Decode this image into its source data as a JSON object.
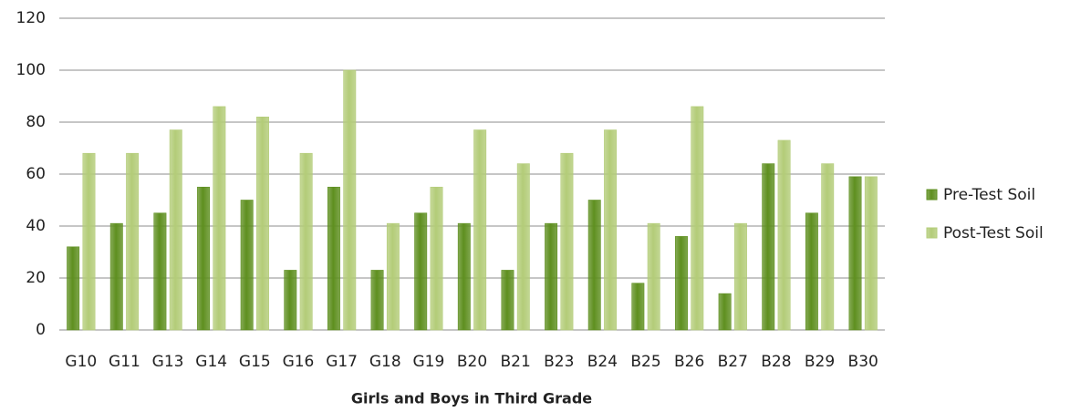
{
  "chart_data": {
    "type": "bar",
    "x_label": "Girls and Boys in Third Grade",
    "categories": [
      "G10",
      "G11",
      "G13",
      "G14",
      "G15",
      "G16",
      "G17",
      "G18",
      "G19",
      "B20",
      "B21",
      "B23",
      "B24",
      "B25",
      "B26",
      "B27",
      "B28",
      "B29",
      "B30"
    ],
    "series": [
      {
        "name": "Pre-Test Soil",
        "color": "#5e8f1f",
        "values": [
          32,
          41,
          45,
          55,
          50,
          23,
          55,
          23,
          45,
          41,
          23,
          41,
          50,
          18,
          36,
          14,
          64,
          45,
          59
        ]
      },
      {
        "name": "Post-Test Soil",
        "color": "#b3cc78",
        "values": [
          68,
          68,
          77,
          86,
          82,
          68,
          100,
          41,
          55,
          77,
          64,
          68,
          77,
          41,
          86,
          41,
          73,
          64,
          59
        ]
      }
    ],
    "ylim": [
      0,
      120
    ],
    "yticks": [
      0,
      20,
      40,
      60,
      80,
      100,
      120
    ],
    "grid": true,
    "legend": "right"
  }
}
